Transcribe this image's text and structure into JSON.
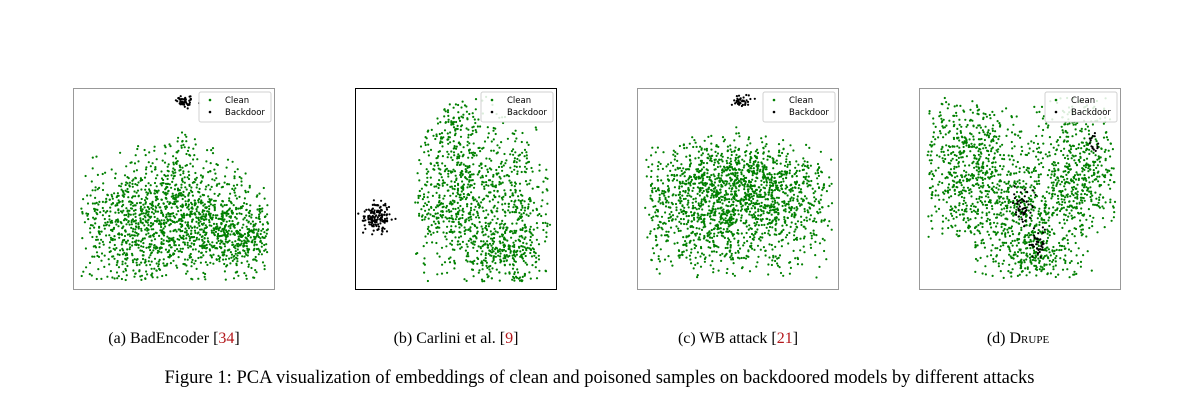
{
  "figure": {
    "caption": "Figure 1: PCA visualization of embeddings of clean and poisoned samples on backdoored models by different attacks",
    "panels": [
      {
        "id": "a",
        "label": "(a)",
        "name": "BadEncoder",
        "ref": "34",
        "chart_data": {
          "type": "scatter",
          "legend": {
            "placement": "top-right",
            "entries": [
              "Clean",
              "Backdoor"
            ]
          },
          "series": [
            {
              "name": "Clean",
              "color": "#008000"
            },
            {
              "name": "Backdoor",
              "color": "#000000"
            }
          ]
        }
      },
      {
        "id": "b",
        "label": "(b)",
        "name": "Carlini et al.",
        "ref": "9",
        "chart_data": {
          "type": "scatter",
          "legend": {
            "placement": "top-right",
            "entries": [
              "Clean",
              "Backdoor"
            ]
          },
          "series": [
            {
              "name": "Clean",
              "color": "#008000"
            },
            {
              "name": "Backdoor",
              "color": "#000000"
            }
          ]
        }
      },
      {
        "id": "c",
        "label": "(c)",
        "name": "WB attack",
        "ref": "21",
        "chart_data": {
          "type": "scatter",
          "legend": {
            "placement": "top-right",
            "entries": [
              "Clean",
              "Backdoor"
            ]
          },
          "series": [
            {
              "name": "Clean",
              "color": "#008000"
            },
            {
              "name": "Backdoor",
              "color": "#000000"
            }
          ]
        }
      },
      {
        "id": "d",
        "label": "(d)",
        "name": "Drupe",
        "ref": "",
        "chart_data": {
          "type": "scatter",
          "legend": {
            "placement": "top-right",
            "entries": [
              "Clean",
              "Backdoor"
            ]
          },
          "series": [
            {
              "name": "Clean",
              "color": "#008000"
            },
            {
              "name": "Backdoor",
              "color": "#000000"
            }
          ]
        }
      }
    ]
  }
}
